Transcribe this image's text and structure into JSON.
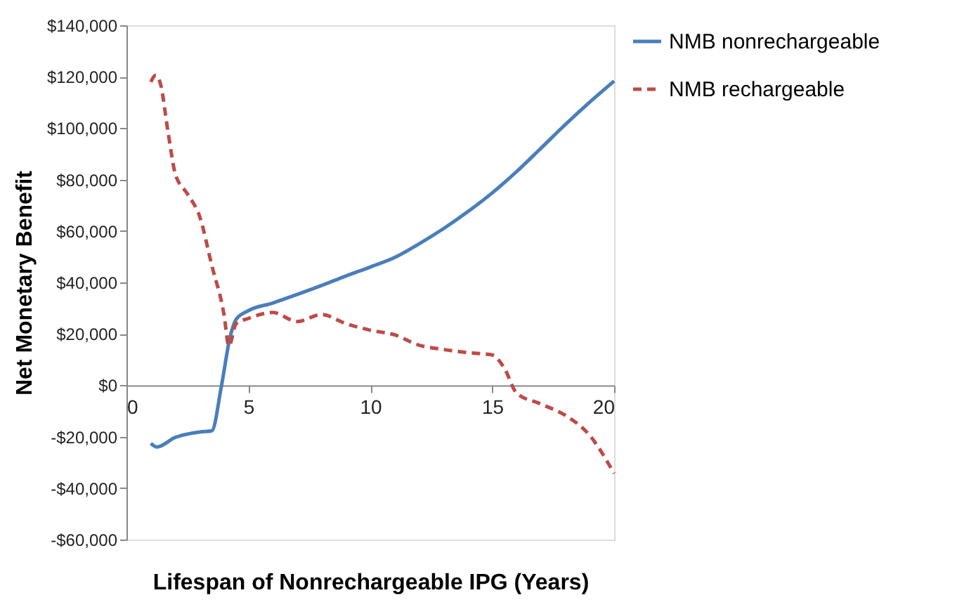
{
  "chart_data": {
    "type": "line",
    "xlabel": "Lifespan of Nonrechargeable IPG (Years)",
    "ylabel": "Net Monetary Benefit",
    "xlim": [
      0,
      20
    ],
    "xticks": [
      0,
      5,
      10,
      15,
      20
    ],
    "ylim": [
      -60000,
      140000
    ],
    "yticks": [
      {
        "value": -60000,
        "label": "-$60,000"
      },
      {
        "value": -40000,
        "label": "-$40,000"
      },
      {
        "value": -20000,
        "label": "-$20,000"
      },
      {
        "value": 0,
        "label": "$0"
      },
      {
        "value": 20000,
        "label": "$20,000"
      },
      {
        "value": 40000,
        "label": "$40,000"
      },
      {
        "value": 60000,
        "label": "$60,000"
      },
      {
        "value": 80000,
        "label": "$80,000"
      },
      {
        "value": 100000,
        "label": "$100,000"
      },
      {
        "value": 120000,
        "label": "$120,000"
      },
      {
        "value": 140000,
        "label": "$140,000"
      }
    ],
    "grid": false,
    "legend": "right",
    "marker": "none",
    "series": [
      {
        "name": "NMB nonrechargeable",
        "color": "#4a7ebb",
        "line_style": "solid",
        "x": [
          1,
          1.25,
          2,
          3,
          3.5,
          3.9,
          4.25,
          4.5,
          5,
          6,
          7,
          8,
          9,
          10,
          11,
          12,
          13,
          14,
          15,
          16,
          17,
          18,
          19,
          20
        ],
        "values": [
          -22600,
          -24000,
          -20300,
          -18200,
          -17700,
          0,
          18800,
          25700,
          29000,
          32000,
          35300,
          38800,
          42500,
          46000,
          49700,
          55000,
          60900,
          67500,
          74800,
          83100,
          92200,
          101400,
          110100,
          118300
        ]
      },
      {
        "name": "NMB rechargeable",
        "color": "#be4b48",
        "line_style": "dashed",
        "x": [
          1,
          1.2,
          1.4,
          1.7,
          2,
          2.5,
          3,
          3.5,
          4,
          4.2,
          4.5,
          5,
          6,
          7,
          8,
          9,
          10,
          11,
          12,
          13,
          14,
          15,
          15.5,
          16,
          17,
          18,
          19,
          20
        ],
        "values": [
          118000,
          120500,
          117000,
          98800,
          82300,
          74400,
          65700,
          46600,
          27500,
          15300,
          24000,
          26000,
          28300,
          24800,
          27500,
          24000,
          21400,
          19600,
          15600,
          13900,
          12700,
          11800,
          6600,
          -3000,
          -7300,
          -11700,
          -19500,
          -34300
        ]
      }
    ]
  }
}
